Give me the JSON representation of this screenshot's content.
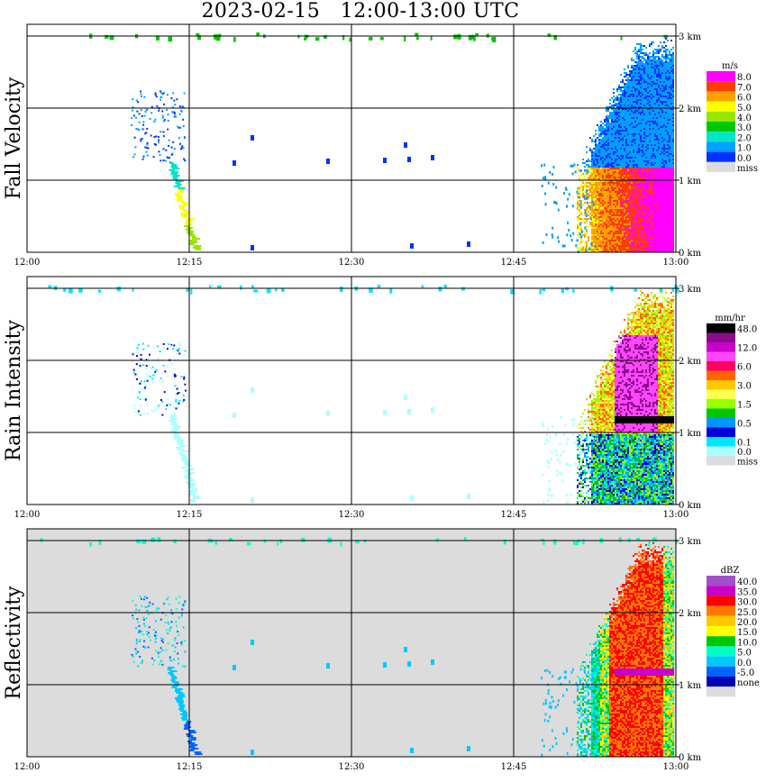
{
  "title": "2023-02-15   12:00-13:00 UTC",
  "x_ticks": [
    "12:00",
    "12:15",
    "12:30",
    "12:45",
    "13:00"
  ],
  "y_ticks": [
    "0 km",
    "1 km",
    "2 km",
    "3 km"
  ],
  "chart_data": [
    {
      "type": "heatmap",
      "ylabel": "Fall Velocity",
      "unit": "m/s",
      "x_range": [
        "12:00",
        "13:00"
      ],
      "y_range_km": [
        0,
        3.0
      ],
      "grid": true,
      "legend_placement": "right",
      "legend": [
        {
          "label": "8.0",
          "color": "#ff00ff"
        },
        {
          "label": "7.0",
          "color": "#ff3c00"
        },
        {
          "label": "6.0",
          "color": "#ffa000"
        },
        {
          "label": "5.0",
          "color": "#ffff00"
        },
        {
          "label": "4.0",
          "color": "#96e600"
        },
        {
          "label": "3.0",
          "color": "#00c800"
        },
        {
          "label": "2.0",
          "color": "#00e6c8"
        },
        {
          "label": "1.0",
          "color": "#00a0ff"
        },
        {
          "label": "0.0",
          "color": "#0032ff"
        },
        {
          "label": "miss",
          "color": "#dcdcdc"
        }
      ],
      "background": "#ffffff"
    },
    {
      "type": "heatmap",
      "ylabel": "Rain Intensity",
      "unit": "mm/hr",
      "x_range": [
        "12:00",
        "13:00"
      ],
      "y_range_km": [
        0,
        3.0
      ],
      "grid": true,
      "legend_placement": "right",
      "legend": [
        {
          "label": "48.0",
          "color": "#000000"
        },
        {
          "label": "",
          "color": "#8c0a8c"
        },
        {
          "label": "12.0",
          "color": "#c800c8"
        },
        {
          "label": "",
          "color": "#ff46ff"
        },
        {
          "label": "6.0",
          "color": "#ff0064"
        },
        {
          "label": "",
          "color": "#ff6400"
        },
        {
          "label": "3.0",
          "color": "#ffc800"
        },
        {
          "label": "",
          "color": "#ffff50"
        },
        {
          "label": "1.5",
          "color": "#96ff00"
        },
        {
          "label": "",
          "color": "#00c800"
        },
        {
          "label": "0.5",
          "color": "#0096ff"
        },
        {
          "label": "",
          "color": "#0000dc"
        },
        {
          "label": "0.1",
          "color": "#00e6ff"
        },
        {
          "label": "0.0",
          "color": "#aaffff"
        },
        {
          "label": "miss",
          "color": "#dcdcdc"
        }
      ],
      "background": "#ffffff"
    },
    {
      "type": "heatmap",
      "ylabel": "Reflectivity",
      "unit": "dBZ",
      "x_range": [
        "12:00",
        "13:00"
      ],
      "y_range_km": [
        0,
        3.0
      ],
      "grid": true,
      "legend_placement": "right",
      "legend": [
        {
          "label": "40.0",
          "color": "#a050c8"
        },
        {
          "label": "35.0",
          "color": "#c800c8"
        },
        {
          "label": "30.0",
          "color": "#ff0000"
        },
        {
          "label": "25.0",
          "color": "#ff7800"
        },
        {
          "label": "20.0",
          "color": "#ffc800"
        },
        {
          "label": "15.0",
          "color": "#ffff00"
        },
        {
          "label": "10.0",
          "color": "#00c800"
        },
        {
          "label": "5.0",
          "color": "#00ffc8"
        },
        {
          "label": "0.0",
          "color": "#00c8ff"
        },
        {
          "label": "-5.0",
          "color": "#0064ff"
        },
        {
          "label": "none",
          "color": "#0000b4"
        },
        {
          "label": "",
          "color": "#dcdcdc"
        }
      ],
      "background": "#dcdcdc"
    }
  ]
}
